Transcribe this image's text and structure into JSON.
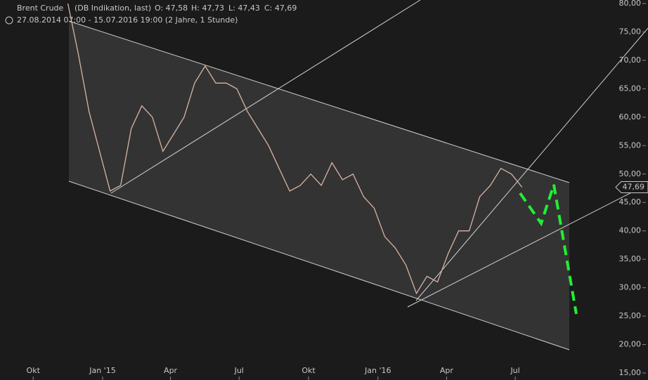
{
  "chart_data": {
    "type": "line",
    "title": "Brent Crude",
    "subtitle": "(DB Indikation, last)",
    "ohlc": [
      "O: 47,58",
      "H: 47,73",
      "L: 47,43",
      "C: 47,69"
    ],
    "period": "27.08.2014 07:00 - 15.07.2016 19:00 (2 Jahre, 1 Stunde)",
    "x": [
      "2014-11-16",
      "2014-11-30",
      "2014-12-14",
      "2014-12-28",
      "2015-01-11",
      "2015-01-25",
      "2015-02-08",
      "2015-02-22",
      "2015-03-08",
      "2015-03-22",
      "2015-04-05",
      "2015-04-19",
      "2015-05-03",
      "2015-05-17",
      "2015-05-31",
      "2015-06-14",
      "2015-06-28",
      "2015-07-12",
      "2015-07-26",
      "2015-08-09",
      "2015-08-23",
      "2015-09-06",
      "2015-09-20",
      "2015-10-04",
      "2015-10-18",
      "2015-11-01",
      "2015-11-15",
      "2015-11-29",
      "2015-12-13",
      "2015-12-27",
      "2016-01-10",
      "2016-01-24",
      "2016-02-07",
      "2016-02-21",
      "2016-03-06",
      "2016-03-20",
      "2016-04-03",
      "2016-04-17",
      "2016-05-01",
      "2016-05-15",
      "2016-05-29",
      "2016-06-12",
      "2016-06-26",
      "2016-07-10"
    ],
    "series": [
      {
        "name": "Brent Crude",
        "color": "#d9b3a3",
        "values": [
          80,
          71,
          61,
          54,
          47,
          48,
          58,
          62,
          60,
          54,
          57,
          60,
          66,
          69,
          66,
          66,
          65,
          61,
          58,
          55,
          51,
          47,
          48,
          50,
          48,
          52,
          49,
          50,
          46,
          44,
          39,
          37,
          34,
          29,
          32,
          31,
          36,
          40,
          40,
          46,
          48,
          51,
          50,
          47.69
        ],
        "last_label": "47,69"
      }
    ],
    "xlim": [
      "2014-08-18",
      "2016-12-24"
    ],
    "xticks": [
      {
        "value": "2014-10-01",
        "label": "Okt"
      },
      {
        "value": "2015-01-01",
        "label": "Jan '15"
      },
      {
        "value": "2015-04-01",
        "label": "Apr"
      },
      {
        "value": "2015-07-01",
        "label": "Jul"
      },
      {
        "value": "2015-10-01",
        "label": "Okt"
      },
      {
        "value": "2016-01-01",
        "label": "Jan '16"
      },
      {
        "value": "2016-04-01",
        "label": "Apr"
      },
      {
        "value": "2016-07-01",
        "label": "Jul"
      }
    ],
    "ylim": [
      15,
      80
    ],
    "yticks": [
      {
        "value": 15,
        "label": "15,00"
      },
      {
        "value": 20,
        "label": "20,00"
      },
      {
        "value": 25,
        "label": "25,00"
      },
      {
        "value": 30,
        "label": "30,00"
      },
      {
        "value": 35,
        "label": "35,00"
      },
      {
        "value": 40,
        "label": "40,00"
      },
      {
        "value": 45,
        "label": "45,00"
      },
      {
        "value": 50,
        "label": "50,00"
      },
      {
        "value": 55,
        "label": "55,00"
      },
      {
        "value": 60,
        "label": "60,00"
      },
      {
        "value": 65,
        "label": "65,00"
      },
      {
        "value": 70,
        "label": "70,00"
      },
      {
        "value": 75,
        "label": "75,00"
      },
      {
        "value": 80,
        "label": "80,00"
      }
    ],
    "grid": false
  }
}
